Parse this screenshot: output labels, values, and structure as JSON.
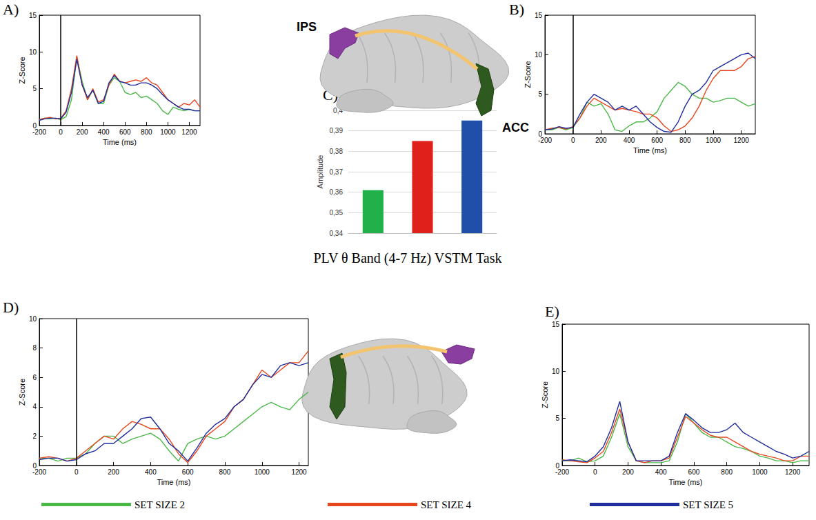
{
  "title": "PLV θ Band (4-7 Hz) VSTM Task",
  "legend": "bottom",
  "diagram": {
    "labels": [
      "IPS",
      "ACC"
    ]
  },
  "chart_data": [
    {
      "panel": "A)",
      "type": "line",
      "xlabel": "Time (ms)",
      "ylabel": "Z-Score",
      "grid": false,
      "vline": 0,
      "xlim": [
        -200,
        1300
      ],
      "xticks": [
        -200,
        0,
        200,
        400,
        600,
        800,
        1000,
        1200
      ],
      "ylim": [
        0,
        15
      ],
      "yticks": [
        0,
        5,
        10,
        15
      ],
      "x": [
        -200,
        -150,
        -100,
        -50,
        0,
        50,
        100,
        150,
        200,
        250,
        300,
        350,
        400,
        450,
        500,
        550,
        600,
        650,
        700,
        750,
        800,
        850,
        900,
        950,
        1000,
        1050,
        1100,
        1150,
        1200,
        1250,
        1300
      ],
      "series": [
        {
          "name": "SET SIZE 2",
          "color": "#4cb848",
          "values": [
            0.8,
            1.0,
            0.9,
            1.0,
            0.8,
            1.2,
            3.5,
            9.3,
            6.0,
            3.5,
            4.8,
            3.0,
            3.0,
            5.5,
            6.5,
            6.0,
            4.5,
            4.2,
            4.5,
            3.8,
            4.0,
            3.5,
            3.0,
            2.0,
            1.5,
            2.5,
            2.2,
            2.0,
            2.2,
            2.0,
            2.0
          ]
        },
        {
          "name": "SET SIZE 4",
          "color": "#e8461e",
          "values": [
            0.8,
            1.0,
            1.1,
            0.9,
            1.0,
            2.0,
            5.0,
            9.5,
            5.5,
            3.5,
            5.0,
            3.2,
            3.5,
            5.5,
            7.0,
            6.0,
            5.8,
            6.0,
            6.2,
            6.0,
            6.5,
            5.8,
            5.5,
            4.5,
            3.5,
            3.0,
            2.5,
            3.0,
            2.8,
            3.5,
            2.5
          ]
        },
        {
          "name": "SET SIZE 5",
          "color": "#1f2d9e",
          "values": [
            0.7,
            0.9,
            1.0,
            1.0,
            0.9,
            1.8,
            4.5,
            9.0,
            5.5,
            3.8,
            4.8,
            3.0,
            3.3,
            5.8,
            6.8,
            6.0,
            5.8,
            5.5,
            5.5,
            5.8,
            5.8,
            5.5,
            5.0,
            4.2,
            3.5,
            3.0,
            2.5,
            2.2,
            2.2,
            2.0,
            2.0
          ]
        }
      ]
    },
    {
      "panel": "B)",
      "type": "line",
      "xlabel": "Time (ms)",
      "ylabel": "Z-Score",
      "grid": false,
      "vline": 0,
      "xlim": [
        -200,
        1300
      ],
      "xticks": [
        -200,
        0,
        200,
        400,
        600,
        800,
        1000,
        1200
      ],
      "ylim": [
        0,
        15
      ],
      "yticks": [
        0,
        5,
        10,
        15
      ],
      "x": [
        -200,
        -150,
        -100,
        -50,
        0,
        50,
        100,
        150,
        200,
        250,
        300,
        350,
        400,
        450,
        500,
        550,
        600,
        650,
        700,
        750,
        800,
        850,
        900,
        950,
        1000,
        1050,
        1100,
        1150,
        1200,
        1250,
        1300
      ],
      "series": [
        {
          "name": "SET SIZE 2",
          "color": "#4cb848",
          "values": [
            0.5,
            0.5,
            0.8,
            0.5,
            0.8,
            2.0,
            4.0,
            3.5,
            3.8,
            2.5,
            0.5,
            0.3,
            1.0,
            1.5,
            1.5,
            2.0,
            2.8,
            4.5,
            5.5,
            6.5,
            6.0,
            5.0,
            4.5,
            4.5,
            4.0,
            4.2,
            4.5,
            4.5,
            4.0,
            3.5,
            3.8
          ]
        },
        {
          "name": "SET SIZE 4",
          "color": "#e8461e",
          "values": [
            0.5,
            0.7,
            0.8,
            0.6,
            0.9,
            2.0,
            3.5,
            4.5,
            4.0,
            3.5,
            3.0,
            3.2,
            3.0,
            2.8,
            2.5,
            2.5,
            2.0,
            1.0,
            0.3,
            0.5,
            1.0,
            2.0,
            3.5,
            5.5,
            7.0,
            8.0,
            8.0,
            8.0,
            8.5,
            9.5,
            9.8
          ]
        },
        {
          "name": "SET SIZE 5",
          "color": "#1f2d9e",
          "values": [
            0.5,
            0.6,
            0.9,
            0.7,
            0.8,
            2.5,
            4.0,
            5.0,
            4.5,
            4.0,
            3.0,
            3.5,
            3.0,
            3.5,
            2.5,
            1.5,
            0.8,
            0.3,
            0.2,
            1.5,
            3.5,
            5.0,
            5.5,
            6.5,
            8.0,
            8.5,
            9.0,
            9.5,
            10.0,
            10.2,
            9.5
          ]
        }
      ]
    },
    {
      "panel": "C)",
      "type": "bar",
      "ylabel": "Amplitude",
      "grid": true,
      "categories": [
        null,
        null,
        null
      ],
      "values": [
        0.361,
        0.385,
        0.395
      ],
      "colors": [
        "#22b04b",
        "#e0201b",
        "#1f4fa8"
      ],
      "ylim": [
        0.34,
        0.4
      ],
      "yticks": [
        {
          "value": 0.34,
          "label": "0,34"
        },
        {
          "value": 0.35,
          "label": "0,35"
        },
        {
          "value": 0.36,
          "label": "0,36"
        },
        {
          "value": 0.37,
          "label": "0,37"
        },
        {
          "value": 0.38,
          "label": "0,38"
        },
        {
          "value": 0.39,
          "label": "0,39"
        },
        {
          "value": 0.4,
          "label": "0,4"
        }
      ]
    },
    {
      "panel": "D)",
      "type": "line",
      "xlabel": "Time (ms)",
      "ylabel": "Z-Score",
      "grid": false,
      "vline": 0,
      "xlim": [
        -200,
        1250
      ],
      "xticks": [
        -200,
        0,
        200,
        400,
        600,
        800,
        1000,
        1200
      ],
      "ylim": [
        0,
        10
      ],
      "yticks": [
        0,
        2,
        4,
        6,
        8,
        10
      ],
      "x": [
        -200,
        -150,
        -100,
        -50,
        0,
        50,
        100,
        150,
        200,
        250,
        300,
        350,
        400,
        450,
        500,
        550,
        600,
        650,
        700,
        750,
        800,
        850,
        900,
        950,
        1000,
        1050,
        1100,
        1150,
        1200,
        1250
      ],
      "series": [
        {
          "name": "SET SIZE 2",
          "color": "#4cb848",
          "values": [
            0.5,
            0.5,
            0.3,
            0.5,
            0.5,
            0.8,
            1.5,
            2.0,
            2.0,
            1.5,
            1.8,
            2.0,
            2.2,
            1.8,
            1.0,
            0.3,
            1.5,
            1.8,
            2.0,
            1.8,
            2.0,
            2.5,
            3.0,
            3.5,
            4.0,
            4.3,
            4.0,
            3.8,
            4.5,
            5.0
          ]
        },
        {
          "name": "SET SIZE 4",
          "color": "#e8461e",
          "values": [
            0.5,
            0.6,
            0.5,
            0.3,
            0.5,
            1.0,
            1.5,
            2.0,
            1.8,
            2.5,
            3.0,
            2.8,
            2.5,
            2.5,
            1.8,
            0.8,
            0.2,
            1.0,
            2.0,
            2.5,
            3.0,
            4.0,
            4.5,
            5.5,
            6.5,
            6.0,
            6.5,
            7.0,
            7.0,
            7.8
          ]
        },
        {
          "name": "SET SIZE 5",
          "color": "#1f2d9e",
          "values": [
            0.4,
            0.5,
            0.5,
            0.3,
            0.4,
            0.8,
            1.0,
            1.5,
            1.5,
            2.0,
            2.5,
            3.2,
            3.3,
            2.5,
            1.5,
            1.0,
            0.3,
            1.2,
            2.2,
            2.8,
            3.2,
            4.0,
            4.5,
            5.5,
            6.2,
            6.0,
            6.8,
            7.0,
            6.8,
            7.0
          ]
        }
      ]
    },
    {
      "panel": "E)",
      "type": "line",
      "xlabel": "Time (ms)",
      "ylabel": "Z-Score",
      "grid": false,
      "xlim": [
        -200,
        1300
      ],
      "xticks": [
        -200,
        0,
        200,
        400,
        600,
        800,
        1000,
        1200
      ],
      "ylim": [
        0,
        15
      ],
      "yticks": [
        0,
        5,
        10,
        15
      ],
      "x": [
        -200,
        -150,
        -100,
        -50,
        0,
        50,
        100,
        150,
        200,
        250,
        300,
        350,
        400,
        450,
        500,
        550,
        600,
        650,
        700,
        750,
        800,
        850,
        900,
        950,
        1000,
        1050,
        1100,
        1150,
        1200,
        1250,
        1300
      ],
      "series": [
        {
          "name": "SET SIZE 2",
          "color": "#4cb848",
          "values": [
            0.5,
            0.5,
            0.8,
            0.4,
            0.5,
            1.0,
            3.0,
            5.5,
            2.0,
            0.5,
            0.3,
            0.3,
            0.3,
            0.5,
            2.5,
            5.5,
            4.5,
            3.5,
            3.0,
            3.0,
            2.5,
            2.0,
            1.8,
            1.5,
            1.0,
            0.8,
            0.5,
            0.5,
            0.3,
            0.5,
            0.5
          ]
        },
        {
          "name": "SET SIZE 4",
          "color": "#e8461e",
          "values": [
            0.6,
            0.5,
            0.4,
            0.3,
            0.8,
            1.5,
            3.5,
            6.0,
            2.5,
            0.5,
            0.3,
            0.5,
            0.5,
            0.8,
            3.0,
            5.2,
            4.5,
            3.8,
            3.2,
            3.0,
            3.0,
            2.5,
            2.0,
            1.5,
            1.2,
            1.0,
            0.8,
            0.5,
            0.5,
            1.0,
            1.0
          ]
        },
        {
          "name": "SET SIZE 5",
          "color": "#1f2d9e",
          "values": [
            0.5,
            0.6,
            0.5,
            0.4,
            1.0,
            2.0,
            4.0,
            6.8,
            2.5,
            0.5,
            0.5,
            0.5,
            0.5,
            1.0,
            3.5,
            5.5,
            4.8,
            4.0,
            3.5,
            3.5,
            3.8,
            4.5,
            3.5,
            3.0,
            2.5,
            2.0,
            1.5,
            1.2,
            0.8,
            1.0,
            1.5
          ]
        }
      ]
    }
  ]
}
